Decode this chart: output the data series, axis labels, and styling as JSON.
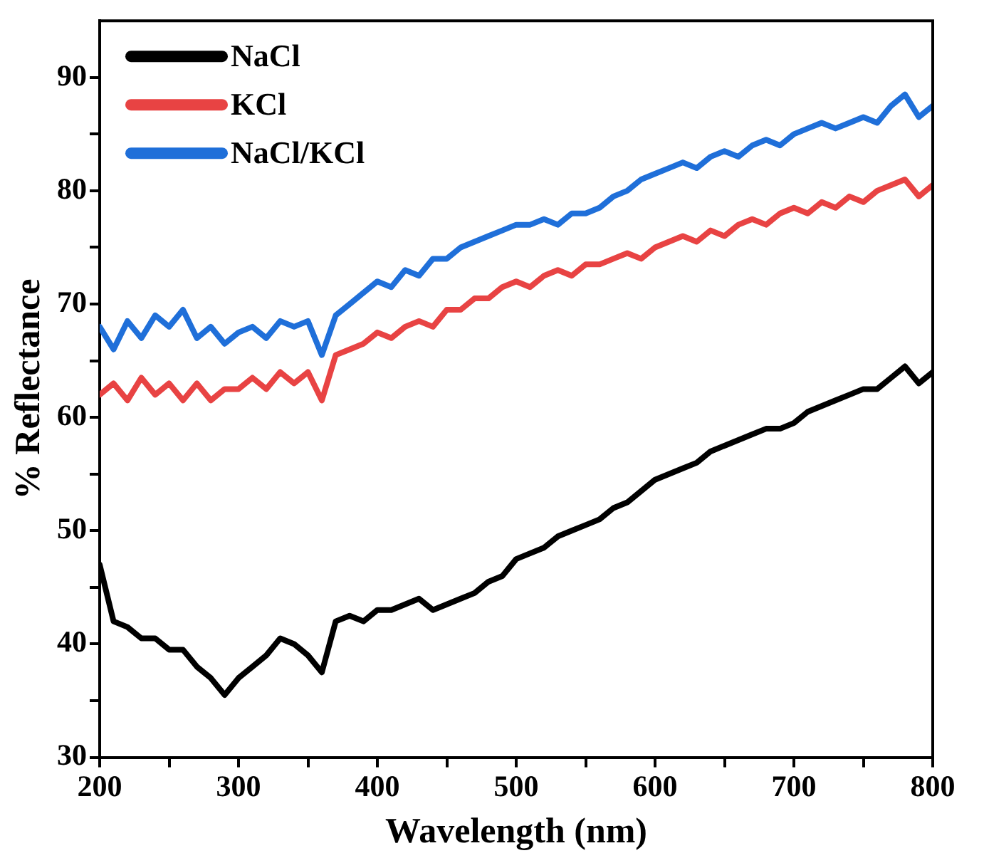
{
  "chart_data": {
    "type": "line",
    "xlabel": "Wavelength (nm)",
    "ylabel": "% Reflectance",
    "x": [
      200,
      210,
      220,
      230,
      240,
      250,
      260,
      270,
      280,
      290,
      300,
      310,
      320,
      330,
      340,
      350,
      360,
      370,
      380,
      390,
      400,
      410,
      420,
      430,
      440,
      450,
      460,
      470,
      480,
      490,
      500,
      510,
      520,
      530,
      540,
      550,
      560,
      570,
      580,
      590,
      600,
      610,
      620,
      630,
      640,
      650,
      660,
      670,
      680,
      690,
      700,
      710,
      720,
      730,
      740,
      750,
      760,
      770,
      780,
      790,
      800
    ],
    "series": [
      {
        "name": "NaCl",
        "color": "#000000",
        "values": [
          47,
          42,
          41.5,
          40.5,
          40.5,
          39.5,
          39.5,
          38,
          37,
          35.5,
          37,
          38,
          39,
          40.5,
          40,
          39,
          37.5,
          42,
          42.5,
          42,
          43,
          43,
          43.5,
          44,
          43,
          43.5,
          44,
          44.5,
          45.5,
          46,
          47.5,
          48,
          48.5,
          49.5,
          50,
          50.5,
          51,
          52,
          52.5,
          53.5,
          54.5,
          55,
          55.5,
          56,
          57,
          57.5,
          58,
          58.5,
          59,
          59,
          59.5,
          60.5,
          61,
          61.5,
          62,
          62.5,
          62.5,
          63.5,
          64.5,
          63,
          64
        ]
      },
      {
        "name": "KCl",
        "color": "#e84343",
        "values": [
          62,
          63,
          61.5,
          63.5,
          62,
          63,
          61.5,
          63,
          61.5,
          62.5,
          62.5,
          63.5,
          62.5,
          64,
          63,
          64,
          61.5,
          65.5,
          66,
          66.5,
          67.5,
          67,
          68,
          68.5,
          68,
          69.5,
          69.5,
          70.5,
          70.5,
          71.5,
          72,
          71.5,
          72.5,
          73,
          72.5,
          73.5,
          73.5,
          74,
          74.5,
          74,
          75,
          75.5,
          76,
          75.5,
          76.5,
          76,
          77,
          77.5,
          77,
          78,
          78.5,
          78,
          79,
          78.5,
          79.5,
          79,
          80,
          80.5,
          81,
          79.5,
          80.5
        ]
      },
      {
        "name": "NaCl/KCl",
        "color": "#1f6fd9",
        "values": [
          68,
          66,
          68.5,
          67,
          69,
          68,
          69.5,
          67,
          68,
          66.5,
          67.5,
          68,
          67,
          68.5,
          68,
          68.5,
          65.5,
          69,
          70,
          71,
          72,
          71.5,
          73,
          72.5,
          74,
          74,
          75,
          75.5,
          76,
          76.5,
          77,
          77,
          77.5,
          77,
          78,
          78,
          78.5,
          79.5,
          80,
          81,
          81.5,
          82,
          82.5,
          82,
          83,
          83.5,
          83,
          84,
          84.5,
          84,
          85,
          85.5,
          86,
          85.5,
          86,
          86.5,
          86,
          87.5,
          88.5,
          86.5,
          87.5
        ]
      }
    ],
    "xlim": [
      200,
      800
    ],
    "xticks": [
      200,
      {
        "value": 250,
        "label": null
      },
      300,
      {
        "value": 350,
        "label": null
      },
      400,
      {
        "value": 450,
        "label": null
      },
      500,
      {
        "value": 550,
        "label": null
      },
      600,
      {
        "value": 650,
        "label": null
      },
      700,
      {
        "value": 750,
        "label": null
      },
      800
    ],
    "ylim": [
      30,
      95
    ],
    "yticks": [
      30,
      {
        "value": 35,
        "label": null
      },
      40,
      {
        "value": 45,
        "label": null
      },
      50,
      {
        "value": 55,
        "label": null
      },
      60,
      {
        "value": 65,
        "label": null
      },
      70,
      {
        "value": 75,
        "label": null
      },
      80,
      {
        "value": 85,
        "label": null
      },
      90
    ],
    "legend": "top left",
    "marker": "none",
    "line_style": "solid",
    "grid": false
  }
}
